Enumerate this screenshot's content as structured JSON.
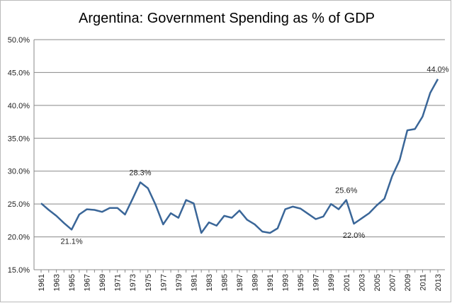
{
  "chart_data": {
    "type": "line",
    "title": "Argentina: Government Spending as % of GDP",
    "categories": [
      "1961",
      null,
      "1963",
      null,
      "1965",
      null,
      "1967",
      null,
      "1969",
      null,
      "1971",
      null,
      "1973",
      null,
      "1975",
      null,
      "1977",
      null,
      "1979",
      null,
      "1981",
      null,
      "1983",
      null,
      "1985",
      null,
      "1987",
      null,
      "1989",
      null,
      "1991",
      null,
      "1993",
      null,
      "1995",
      null,
      "1997",
      null,
      "1999",
      null,
      "2001",
      null,
      "2003",
      null,
      "2005",
      null,
      "2007",
      null,
      "2009",
      null,
      "2011",
      null,
      "2013"
    ],
    "series": [
      {
        "name": "Government Spending",
        "color": "#3a6698",
        "values": [
          25.1,
          24.1,
          23.2,
          22.1,
          21.1,
          23.4,
          24.2,
          24.1,
          23.8,
          24.4,
          24.4,
          23.4,
          25.8,
          28.3,
          27.4,
          24.9,
          21.9,
          23.6,
          22.9,
          25.6,
          25.1,
          20.6,
          22.2,
          21.7,
          23.2,
          22.9,
          24.0,
          22.6,
          21.9,
          20.8,
          20.6,
          21.3,
          24.2,
          24.6,
          24.3,
          23.5,
          22.7,
          23.1,
          25.0,
          24.2,
          25.6,
          22.0,
          22.8,
          23.6,
          24.8,
          25.8,
          29.2,
          31.7,
          36.2,
          36.4,
          38.3,
          41.9,
          44.0
        ],
        "value_labels": [
          null,
          null,
          null,
          null,
          "21.1%",
          null,
          null,
          null,
          null,
          null,
          null,
          null,
          null,
          "28.3%",
          null,
          null,
          null,
          null,
          null,
          null,
          null,
          null,
          null,
          null,
          null,
          null,
          null,
          null,
          null,
          null,
          null,
          null,
          null,
          null,
          null,
          null,
          null,
          null,
          null,
          null,
          "25.6%",
          "22.0%",
          null,
          null,
          null,
          null,
          null,
          null,
          null,
          null,
          null,
          null,
          "44.0%"
        ]
      }
    ],
    "ylim": [
      15,
      50
    ],
    "yticks": [
      {
        "value": 15,
        "label": "15.0%"
      },
      {
        "value": 20,
        "label": "20.0%"
      },
      {
        "value": 25,
        "label": "25.0%"
      },
      {
        "value": 30,
        "label": "30.0%"
      },
      {
        "value": 35,
        "label": "35.0%"
      },
      {
        "value": 40,
        "label": "40.0%"
      },
      {
        "value": 45,
        "label": "45.0%"
      },
      {
        "value": 50,
        "label": "50.0%"
      }
    ],
    "grid": true
  }
}
